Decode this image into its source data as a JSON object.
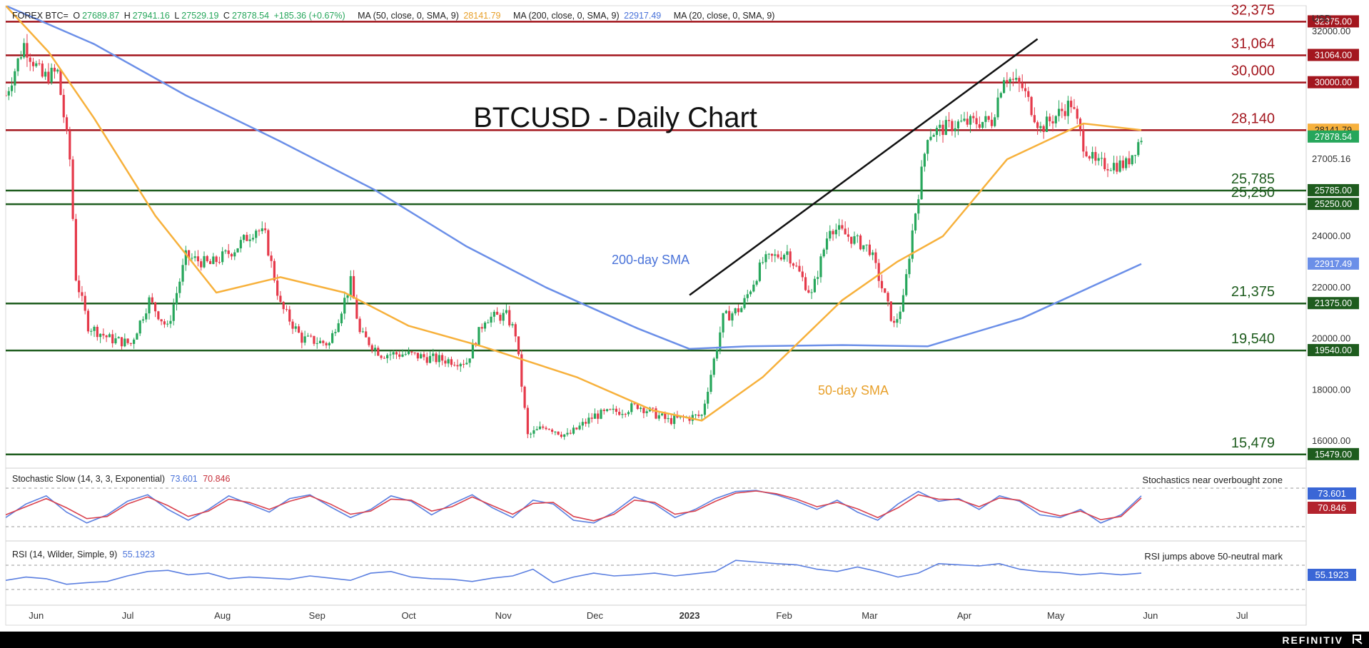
{
  "header": {
    "symbol": "FOREX BTC=",
    "o_label": "O",
    "o": "27689.87",
    "h_label": "H",
    "h": "27941.16",
    "l_label": "L",
    "l": "27529.19",
    "c_label": "C",
    "c": "27878.54",
    "change": "+185.36 (+0.67%)",
    "ma50_label": "MA (50, close, 0, SMA, 9)",
    "ma50_value": "28141.79",
    "ma200_label": "MA (200, close, 0, SMA, 9)",
    "ma200_value": "22917.49",
    "ma20_label": "MA (20, close, 0, SMA, 9)"
  },
  "currency": "USD",
  "stoch": {
    "title": "Stochastic Slow (14, 3, 3, Exponential)",
    "k_value": "73.601",
    "d_value": "70.846",
    "annotation": "Stochastics near overbought zone"
  },
  "rsi": {
    "title": "RSI (14, Wilder, Simple, 9)",
    "value": "55.1923",
    "annotation": "RSI jumps above 50-neutral mark"
  },
  "footer": {
    "brand": "REFINITIV"
  },
  "colors": {
    "red_level": "#a3161e",
    "green_level": "#1e5c1e",
    "sma50": "#f7b13c",
    "sma200": "#6b8fe8",
    "bull": "#26a65b",
    "bear": "#e5394a",
    "stoch_k": "#5b7fe0",
    "stoch_d": "#d9424f",
    "rsi": "#5b7fe0"
  },
  "chart_data": {
    "type": "candlestick",
    "title": "BTCUSD - Daily Chart",
    "y_axis": {
      "ticks": [
        "16000.00",
        "18000.00",
        "20000.00",
        "22000.00",
        "24000.00",
        "27005.16",
        "32000.00"
      ],
      "ylim": [
        15000,
        33000
      ]
    },
    "x_axis": {
      "labels": [
        "Jun",
        "Jul",
        "Aug",
        "Sep",
        "Oct",
        "Nov",
        "Dec",
        "2023",
        "Feb",
        "Mar",
        "Apr",
        "May",
        "Jun",
        "Jul"
      ]
    },
    "resistance_levels": [
      {
        "label": "32,375",
        "tag": "32375.00",
        "value": 32375
      },
      {
        "label": "31,064",
        "tag": "31064.00",
        "value": 31064
      },
      {
        "label": "30,000",
        "tag": "30000.00",
        "value": 30000
      },
      {
        "label": "28,140",
        "tag": "28140.00",
        "value": 28140
      }
    ],
    "support_levels": [
      {
        "label": "25,785",
        "tag": "25785.00",
        "value": 25785
      },
      {
        "label": "25,250",
        "tag": "25250.00",
        "value": 25250
      },
      {
        "label": "21,375",
        "tag": "21375.00",
        "value": 21375
      },
      {
        "label": "19,540",
        "tag": "19540.00",
        "value": 19540
      },
      {
        "label": "15,479",
        "tag": "15479.00",
        "value": 15479
      }
    ],
    "price_tags": [
      {
        "tag": "28141.79",
        "value": 28141.79,
        "color": "#f7b13c"
      },
      {
        "tag": "27878.54",
        "value": 27878.54,
        "color": "#26a65b"
      },
      {
        "tag": "22917.49",
        "value": 22917.49,
        "color": "#6b8fe8"
      }
    ],
    "series": [
      {
        "name": "200-day SMA",
        "x": [
          "2022-05-22",
          "2022-06-20",
          "2022-07-20",
          "2022-08-20",
          "2022-09-20",
          "2022-10-20",
          "2022-11-15",
          "2022-12-15",
          "2023-01-01",
          "2023-01-20",
          "2023-02-20",
          "2023-03-20",
          "2023-04-20",
          "2023-05-29"
        ],
        "values": [
          33000,
          31500,
          29500,
          27700,
          25800,
          23600,
          22000,
          20400,
          19600,
          19700,
          19750,
          19700,
          20800,
          22917
        ]
      },
      {
        "name": "50-day SMA",
        "x": [
          "2022-05-22",
          "2022-06-05",
          "2022-06-20",
          "2022-07-10",
          "2022-07-30",
          "2022-08-20",
          "2022-09-10",
          "2022-10-01",
          "2022-10-25",
          "2022-11-25",
          "2022-12-20",
          "2023-01-05",
          "2023-01-25",
          "2023-02-20",
          "2023-03-10",
          "2023-03-25",
          "2023-04-15",
          "2023-05-10",
          "2023-05-29"
        ],
        "values": [
          33000,
          31200,
          28600,
          24800,
          21800,
          22400,
          21800,
          20500,
          19700,
          18500,
          17200,
          16800,
          18500,
          21500,
          23000,
          24000,
          27000,
          28400,
          28142
        ]
      }
    ],
    "trendline": {
      "from": {
        "x": "2023-01-01",
        "y": 21700
      },
      "to": {
        "x": "2023-04-25",
        "y": 31700
      }
    },
    "close_path": {
      "x": [
        "2022-05-22",
        "2022-05-28",
        "2022-06-03",
        "2022-06-08",
        "2022-06-12",
        "2022-06-14",
        "2022-06-18",
        "2022-06-25",
        "2022-07-02",
        "2022-07-08",
        "2022-07-14",
        "2022-07-20",
        "2022-07-28",
        "2022-08-05",
        "2022-08-12",
        "2022-08-15",
        "2022-08-20",
        "2022-08-27",
        "2022-09-05",
        "2022-09-12",
        "2022-09-15",
        "2022-09-22",
        "2022-09-30",
        "2022-10-10",
        "2022-10-20",
        "2022-10-26",
        "2022-11-02",
        "2022-11-05",
        "2022-11-09",
        "2022-11-15",
        "2022-11-22",
        "2022-12-01",
        "2022-12-10",
        "2022-12-15",
        "2022-12-25",
        "2023-01-05",
        "2023-01-12",
        "2023-01-18",
        "2023-01-25",
        "2023-02-02",
        "2023-02-10",
        "2023-02-16",
        "2023-02-22",
        "2023-03-01",
        "2023-03-09",
        "2023-03-12",
        "2023-03-15",
        "2023-03-20",
        "2023-03-30",
        "2023-04-10",
        "2023-04-14",
        "2023-04-20",
        "2023-04-26",
        "2023-05-06",
        "2023-05-10",
        "2023-05-14",
        "2023-05-24",
        "2023-05-29"
      ],
      "y": [
        29500,
        31500,
        30200,
        30400,
        27000,
        22400,
        20500,
        20000,
        19800,
        21500,
        20400,
        23200,
        22900,
        23500,
        24300,
        24000,
        21300,
        20000,
        19800,
        22200,
        20200,
        19400,
        19400,
        19200,
        19100,
        20800,
        20900,
        20200,
        16200,
        16600,
        16200,
        17000,
        17200,
        17400,
        16800,
        17000,
        20800,
        21200,
        23000,
        23400,
        21700,
        24400,
        24000,
        23500,
        20500,
        21500,
        24200,
        28000,
        28400,
        28500,
        30300,
        29800,
        28200,
        29200,
        27600,
        26800,
        26800,
        27878
      ]
    },
    "stoch_k_path": [
      30,
      55,
      70,
      40,
      20,
      35,
      60,
      72,
      45,
      25,
      45,
      70,
      55,
      40,
      65,
      72,
      50,
      30,
      45,
      70,
      60,
      35,
      55,
      72,
      48,
      30,
      62,
      55,
      25,
      20,
      40,
      68,
      55,
      30,
      45,
      65,
      78,
      80,
      72,
      60,
      45,
      62,
      40,
      25,
      55,
      78,
      60,
      65,
      45,
      70,
      60,
      35,
      30,
      45,
      20,
      35,
      70
    ],
    "stoch_d_path": [
      35,
      50,
      65,
      48,
      28,
      32,
      55,
      68,
      52,
      32,
      42,
      64,
      58,
      45,
      60,
      70,
      55,
      36,
      42,
      64,
      62,
      42,
      50,
      68,
      52,
      36,
      56,
      58,
      32,
      24,
      36,
      62,
      58,
      36,
      42,
      60,
      75,
      79,
      74,
      64,
      50,
      58,
      46,
      30,
      48,
      72,
      64,
      63,
      50,
      66,
      62,
      42,
      33,
      42,
      26,
      32,
      66
    ],
    "rsi_path": [
      42,
      48,
      45,
      35,
      38,
      40,
      50,
      58,
      60,
      52,
      55,
      45,
      48,
      46,
      44,
      50,
      46,
      42,
      55,
      58,
      48,
      45,
      44,
      40,
      46,
      50,
      62,
      38,
      48,
      55,
      50,
      52,
      55,
      50,
      54,
      58,
      78,
      75,
      72,
      70,
      62,
      58,
      66,
      58,
      48,
      55,
      72,
      70,
      68,
      72,
      62,
      58,
      56,
      52,
      55,
      52,
      55
    ]
  }
}
